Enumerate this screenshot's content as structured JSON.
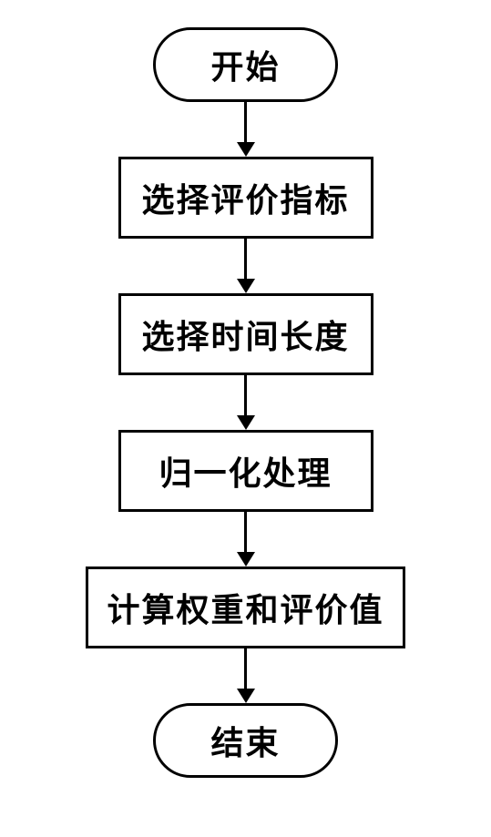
{
  "flowchart": {
    "type": "flowchart",
    "background_color": "#ffffff",
    "border_color": "#000000",
    "border_width": 3,
    "text_color": "#000000",
    "font_size": 36,
    "font_weight": "bold",
    "arrow_color": "#000000",
    "arrow_line_width": 3,
    "arrow_head_size": 16,
    "terminal_border_radius": 50,
    "nodes": [
      {
        "id": "start",
        "type": "terminal",
        "label": "开始"
      },
      {
        "id": "step1",
        "type": "process",
        "label": "选择评价指标"
      },
      {
        "id": "step2",
        "type": "process",
        "label": "选择时间长度"
      },
      {
        "id": "step3",
        "type": "process",
        "label": "归一化处理"
      },
      {
        "id": "step4",
        "type": "process",
        "label": "计算权重和评价值"
      },
      {
        "id": "end",
        "type": "terminal",
        "label": "结束"
      }
    ],
    "edges": [
      {
        "from": "start",
        "to": "step1"
      },
      {
        "from": "step1",
        "to": "step2"
      },
      {
        "from": "step2",
        "to": "step3"
      },
      {
        "from": "step3",
        "to": "step4"
      },
      {
        "from": "step4",
        "to": "end"
      }
    ]
  }
}
